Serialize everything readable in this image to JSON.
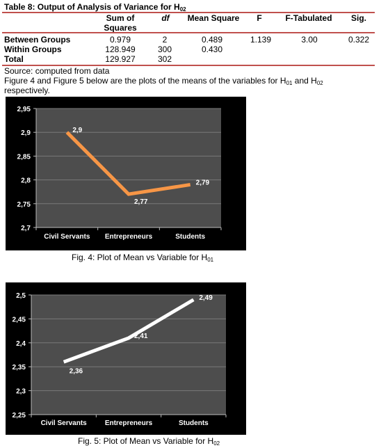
{
  "table": {
    "caption_prefix": "Table 8: Output of Analysis of Variance for H",
    "caption_sub": "02",
    "headers": {
      "sum_of_squares_line1": "Sum of",
      "sum_of_squares_line2": "Squares",
      "df": "df",
      "mean_square": "Mean Square",
      "f": "F",
      "f_tabulated": "F-Tabulated",
      "sig": "Sig."
    },
    "rows": [
      {
        "label": "Between Groups",
        "ss": "0.979",
        "df": "2",
        "ms": "0.489",
        "f": "1.139",
        "ftab": "3.00",
        "sig": "0.322"
      },
      {
        "label": "Within Groups",
        "ss": "128.949",
        "df": "300",
        "ms": "0.430",
        "f": "",
        "ftab": "",
        "sig": ""
      },
      {
        "label": "Total",
        "ss": "129.927",
        "df": "302",
        "ms": "",
        "f": "",
        "ftab": "",
        "sig": ""
      }
    ]
  },
  "source_note": "Source: computed from data",
  "paragraph": {
    "part1": "Figure 4 and Figure 5 below are the plots of the means of the variables for H",
    "sub1": "01",
    "part2": " and H",
    "sub2": "02",
    "line2": "respectively."
  },
  "figures": [
    {
      "caption_prefix": "Fig. 4: Plot of Mean vs Variable for H",
      "caption_sub": "01"
    },
    {
      "caption_prefix": "Fig. 5: Plot of Mean vs Variable for H",
      "caption_sub": "02"
    }
  ],
  "chart_data": [
    {
      "type": "line",
      "categories": [
        "Civil Servants",
        "Entrepreneurs",
        "Students"
      ],
      "values": [
        2.9,
        2.77,
        2.79
      ],
      "data_labels": [
        "2,9",
        "2,77",
        "2,79"
      ],
      "ylim": [
        2.7,
        2.95
      ],
      "y_ticks": [
        "2,7",
        "2,75",
        "2,8",
        "2,85",
        "2,9",
        "2,95"
      ],
      "y_tick_values": [
        2.7,
        2.75,
        2.8,
        2.85,
        2.9,
        2.95
      ],
      "line_color": "#f79646",
      "background": "#000000",
      "grid": true,
      "legend": "none"
    },
    {
      "type": "line",
      "categories": [
        "Civil Servants",
        "Entrepreneurs",
        "Students"
      ],
      "values": [
        2.36,
        2.41,
        2.49
      ],
      "data_labels": [
        "2,36",
        "2,41",
        "2,49"
      ],
      "ylim": [
        2.25,
        2.5
      ],
      "y_ticks": [
        "2,25",
        "2,3",
        "2,35",
        "2,4",
        "2,45",
        "2,5"
      ],
      "y_tick_values": [
        2.25,
        2.3,
        2.35,
        2.4,
        2.45,
        2.5
      ],
      "line_color": "#ffffff",
      "background": "#000000",
      "grid": true,
      "legend": "none"
    }
  ]
}
